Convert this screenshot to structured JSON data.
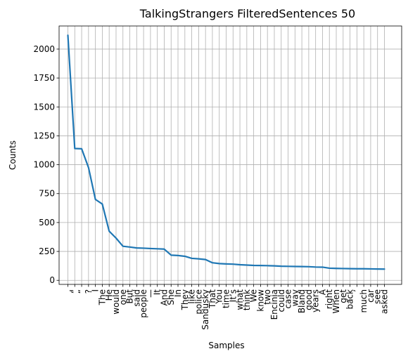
{
  "chart_data": {
    "type": "line",
    "title": "TalkingStrangers FilteredSentences 50",
    "xlabel": "Samples",
    "ylabel": "Counts",
    "ylim": [
      -35,
      2200
    ],
    "yticks": [
      0,
      250,
      500,
      750,
      1000,
      1250,
      1500,
      1750,
      2000
    ],
    "grid": true,
    "line_color": "#1f77b4",
    "categories": [
      ",",
      "”",
      "“",
      "?",
      "I",
      "The",
      "He",
      "would",
      "one",
      "But",
      "said",
      "people",
      "—",
      "It",
      "And",
      "She",
      "In",
      "They",
      "like",
      "police",
      "Sandusky",
      "That",
      "You",
      "time",
      "It’s",
      "what",
      "think",
      "We",
      "know",
      "two",
      "Encinia",
      "could",
      "case",
      "way",
      "Bland",
      "good",
      "years",
      "A",
      "right",
      "When",
      "get",
      "back",
      "’",
      "much",
      "car",
      "see",
      "asked"
    ],
    "values": [
      2120,
      1140,
      1138,
      975,
      700,
      660,
      425,
      365,
      295,
      288,
      280,
      278,
      275,
      273,
      270,
      218,
      215,
      208,
      190,
      186,
      180,
      152,
      145,
      142,
      140,
      135,
      132,
      129,
      128,
      127,
      125,
      122,
      121,
      120,
      119,
      118,
      115,
      114,
      105,
      103,
      102,
      101,
      100,
      100,
      99,
      98,
      97
    ]
  }
}
